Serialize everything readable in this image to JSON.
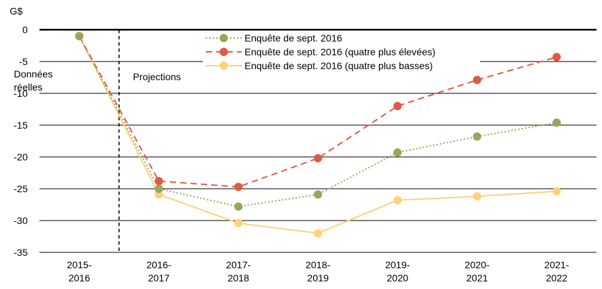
{
  "chart_data": {
    "type": "line",
    "ylabel": "G$",
    "ylim": [
      -35,
      0
    ],
    "yticks": [
      0,
      -5,
      -10,
      -15,
      -20,
      -25,
      -30,
      -35
    ],
    "grid": true,
    "legend_position": "top-center",
    "categories": [
      "2015-2016",
      "2016-2017",
      "2017-2018",
      "2018-2019",
      "2019-2020",
      "2020-2021",
      "2021-2022"
    ],
    "category_labels": [
      [
        "2015-",
        "2016"
      ],
      [
        "2016-",
        "2017"
      ],
      [
        "2017-",
        "2018"
      ],
      [
        "2018-",
        "2019"
      ],
      [
        "2019-",
        "2020"
      ],
      [
        "2020-",
        "2021"
      ],
      [
        "2021-",
        "2022"
      ]
    ],
    "annotations": {
      "actual_line1": "Données",
      "actual_line2": "réelles",
      "projections": "Projections"
    },
    "series": [
      {
        "name": "Enquête de sept. 2016",
        "style": "dotted",
        "color": "#9aa65b",
        "values": [
          -1.0,
          -25.0,
          -27.8,
          -25.9,
          -19.3,
          -16.8,
          -14.6
        ]
      },
      {
        "name": "Enquête de sept. 2016 (quatre plus élevées)",
        "style": "dashed",
        "color": "#e05a47",
        "values": [
          -1.0,
          -23.8,
          -24.7,
          -20.2,
          -12.0,
          -7.9,
          -4.3
        ]
      },
      {
        "name": "Enquête de sept. 2016 (quatre plus basses)",
        "style": "solid",
        "color": "#fdd27a",
        "values": [
          -1.0,
          -25.9,
          -30.4,
          -32.0,
          -26.8,
          -26.2,
          -25.4
        ]
      }
    ]
  }
}
